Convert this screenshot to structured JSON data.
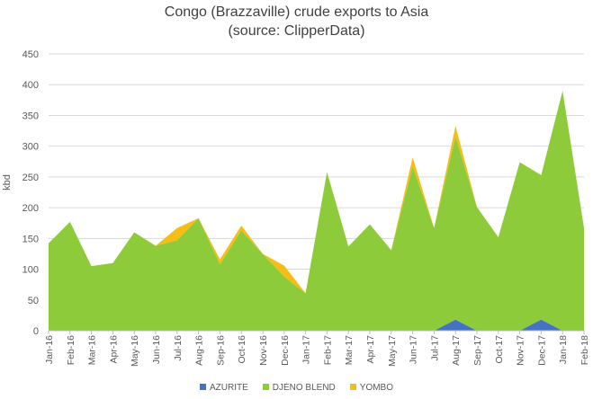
{
  "chart_data": {
    "type": "area",
    "stacked": true,
    "title": "Congo (Brazzaville) crude exports to Asia",
    "subtitle": "(source: ClipperData)",
    "xlabel": "",
    "ylabel": "kbd",
    "ylim": [
      0,
      450
    ],
    "yticks": [
      0,
      50,
      100,
      150,
      200,
      250,
      300,
      350,
      400,
      450
    ],
    "grid": true,
    "legend_position": "bottom",
    "categories": [
      "Jan-16",
      "Feb-16",
      "Mar-16",
      "Apr-16",
      "May-16",
      "Jun-16",
      "Jul-16",
      "Aug-16",
      "Sep-16",
      "Oct-16",
      "Nov-16",
      "Dec-16",
      "Jan-17",
      "Feb-17",
      "Mar-17",
      "Apr-17",
      "May-17",
      "Jun-17",
      "Jul-17",
      "Aug-17",
      "Sep-17",
      "Oct-17",
      "Nov-17",
      "Dec-17",
      "Jan-18",
      "Feb-18"
    ],
    "series": [
      {
        "name": "AZURITE",
        "color": "#4472C4",
        "values": [
          0,
          0,
          0,
          0,
          0,
          0,
          0,
          0,
          0,
          0,
          0,
          0,
          0,
          0,
          0,
          0,
          0,
          0,
          0,
          18,
          0,
          0,
          0,
          18,
          0,
          0
        ]
      },
      {
        "name": "DJENO BLEND",
        "color": "#8DCB3A",
        "values": [
          142,
          177,
          105,
          110,
          160,
          138,
          147,
          183,
          108,
          163,
          125,
          88,
          61,
          258,
          137,
          173,
          131,
          267,
          167,
          297,
          201,
          152,
          274,
          235,
          390,
          167
        ]
      },
      {
        "name": "YOMBO",
        "color": "#F5BE16",
        "values": [
          0,
          0,
          0,
          0,
          0,
          0,
          20,
          0,
          8,
          8,
          0,
          18,
          0,
          0,
          0,
          0,
          0,
          15,
          0,
          18,
          0,
          0,
          0,
          0,
          0,
          0
        ]
      }
    ]
  }
}
